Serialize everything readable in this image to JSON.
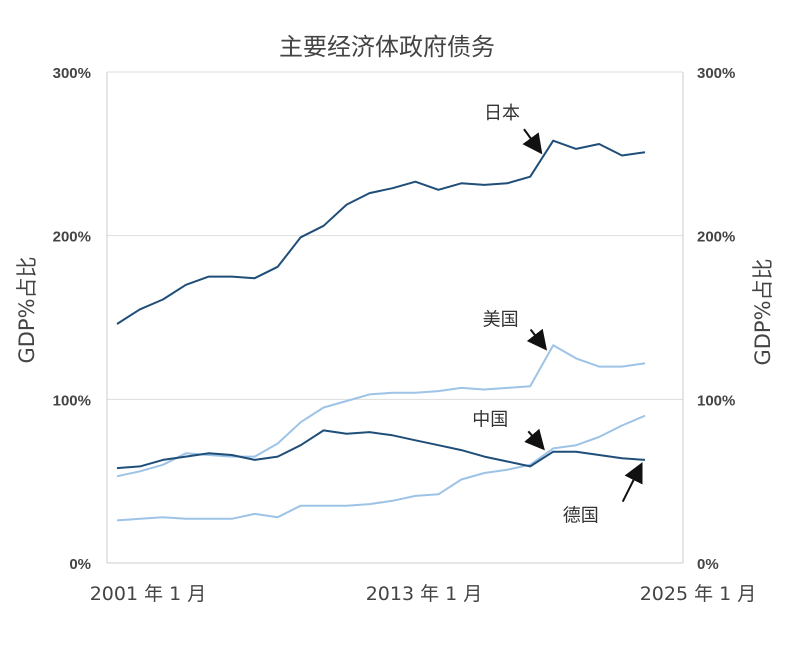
{
  "chart_data": {
    "type": "line",
    "title": "主要经济体政府债务",
    "ylabel_left": "GDP%占比",
    "ylabel_right": "GDP%占比",
    "ylim": [
      0,
      300
    ],
    "yticks": [
      "0%",
      "100%",
      "200%",
      "300%"
    ],
    "x_labels": [
      "2001 年 1 月",
      "2013 年 1 月",
      "2025 年 1 月"
    ],
    "x": [
      2001,
      2002,
      2003,
      2004,
      2005,
      2006,
      2007,
      2008,
      2009,
      2010,
      2011,
      2012,
      2013,
      2014,
      2015,
      2016,
      2017,
      2018,
      2019,
      2020,
      2021,
      2022,
      2023,
      2024
    ],
    "series": [
      {
        "name": "日本",
        "color": "#1f4e79",
        "values": [
          146,
          155,
          161,
          170,
          175,
          175,
          174,
          181,
          199,
          206,
          219,
          226,
          229,
          233,
          228,
          232,
          231,
          232,
          236,
          258,
          253,
          256,
          249,
          251
        ]
      },
      {
        "name": "美国",
        "color": "#9dc3e6",
        "values": [
          53,
          56,
          60,
          67,
          66,
          65,
          65,
          73,
          86,
          95,
          99,
          103,
          104,
          104,
          105,
          107,
          106,
          107,
          108,
          133,
          125,
          120,
          120,
          122
        ]
      },
      {
        "name": "中国",
        "color": "#9dc3e6",
        "values": [
          26,
          27,
          28,
          27,
          27,
          27,
          30,
          28,
          35,
          35,
          35,
          36,
          38,
          41,
          42,
          51,
          55,
          57,
          60,
          70,
          72,
          77,
          84,
          90
        ]
      },
      {
        "name": "德国",
        "color": "#1f4e79",
        "values": [
          58,
          59,
          63,
          65,
          67,
          66,
          63,
          65,
          72,
          81,
          79,
          80,
          78,
          75,
          72,
          69,
          65,
          62,
          59,
          68,
          68,
          66,
          64,
          63
        ]
      }
    ],
    "grid": true,
    "annotations": [
      {
        "series": "日本",
        "text": "日本",
        "year": 2019.6
      },
      {
        "series": "美国",
        "text": "美国",
        "year": 2019.8
      },
      {
        "series": "中国",
        "text": "中国",
        "year": 2019.7
      },
      {
        "series": "德国",
        "text": "德国",
        "year": 2023.9
      }
    ]
  }
}
